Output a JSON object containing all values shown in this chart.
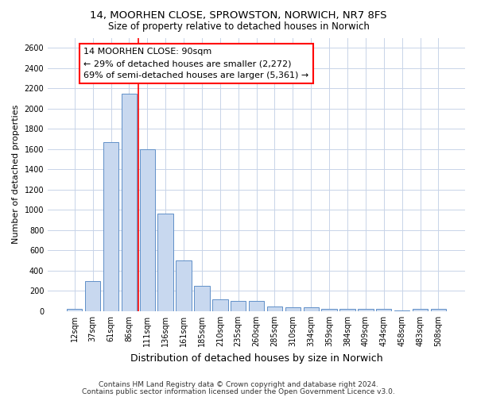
{
  "title_line1": "14, MOORHEN CLOSE, SPROWSTON, NORWICH, NR7 8FS",
  "title_line2": "Size of property relative to detached houses in Norwich",
  "xlabel": "Distribution of detached houses by size in Norwich",
  "ylabel": "Number of detached properties",
  "categories": [
    "12sqm",
    "37sqm",
    "61sqm",
    "86sqm",
    "111sqm",
    "136sqm",
    "161sqm",
    "185sqm",
    "210sqm",
    "235sqm",
    "260sqm",
    "285sqm",
    "310sqm",
    "334sqm",
    "359sqm",
    "384sqm",
    "409sqm",
    "434sqm",
    "458sqm",
    "483sqm",
    "508sqm"
  ],
  "values": [
    25,
    300,
    1670,
    2150,
    1600,
    960,
    500,
    248,
    120,
    100,
    100,
    50,
    35,
    35,
    20,
    20,
    20,
    20,
    5,
    20,
    20
  ],
  "bar_color": "#c8d8ef",
  "bar_edge_color": "#6090c8",
  "red_line_x": 3.5,
  "annotation_line1": "14 MOORHEN CLOSE: 90sqm",
  "annotation_line2": "← 29% of detached houses are smaller (2,272)",
  "annotation_line3": "69% of semi-detached houses are larger (5,361) →",
  "ylim": [
    0,
    2700
  ],
  "yticks": [
    0,
    200,
    400,
    600,
    800,
    1000,
    1200,
    1400,
    1600,
    1800,
    2000,
    2200,
    2400,
    2600
  ],
  "grid_color": "#c8d4e8",
  "axes_bg_color": "#ffffff",
  "footer_line1": "Contains HM Land Registry data © Crown copyright and database right 2024.",
  "footer_line2": "Contains public sector information licensed under the Open Government Licence v3.0.",
  "fig_width": 6.0,
  "fig_height": 5.0,
  "title1_fontsize": 9.5,
  "title2_fontsize": 8.5,
  "ylabel_fontsize": 8.0,
  "xlabel_fontsize": 9.0,
  "tick_fontsize": 7.0,
  "annot_fontsize": 8.0,
  "footer_fontsize": 6.5
}
